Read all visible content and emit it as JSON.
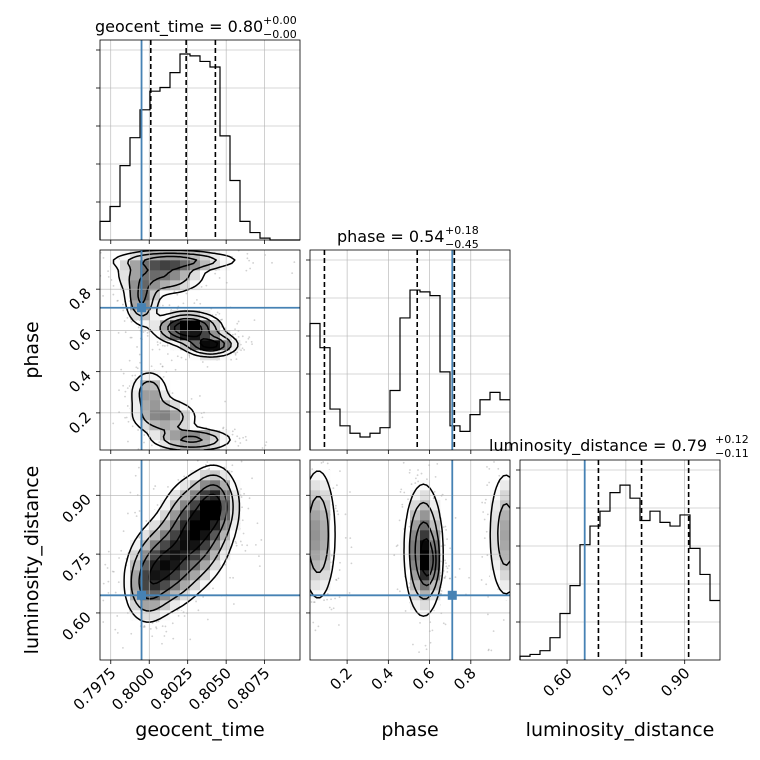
{
  "colors": {
    "truth": "#4682b4",
    "hist": "#000000",
    "grid": "#b0b0b0",
    "quantile": "#000000"
  },
  "chart_data": {
    "type": "corner",
    "parameters": [
      "geocent_time",
      "phase",
      "luminosity_distance"
    ],
    "axis_labels": {
      "geocent_time": "geocent_time",
      "phase": "phase",
      "luminosity_distance": "luminosity_distance"
    },
    "titles": {
      "geocent_time": {
        "base": "geocent_time = 0.80",
        "plus": "+0.00",
        "minus": "−0.00"
      },
      "phase": {
        "base": "phase = 0.54",
        "plus": "+0.18",
        "minus": "−0.45"
      },
      "luminosity_distance": {
        "base": "luminosity_distance = 0.79",
        "plus": "+0.12",
        "minus": "−0.11"
      }
    },
    "ranges": {
      "geocent_time": [
        0.7968,
        0.8098
      ],
      "phase": [
        0.02,
        0.99
      ],
      "luminosity_distance": [
        0.48,
        0.99
      ]
    },
    "ticks": {
      "geocent_time": [
        0.7975,
        0.8,
        0.8025,
        0.805,
        0.8075
      ],
      "phase": [
        0.2,
        0.4,
        0.6,
        0.8
      ],
      "luminosity_distance": [
        0.6,
        0.75,
        0.9
      ]
    },
    "tick_labels": {
      "geocent_time": [
        "0.7975",
        "0.8000",
        "0.8025",
        "0.8050",
        "0.8075"
      ],
      "phase": [
        "0.2",
        "0.4",
        "0.6",
        "0.8"
      ],
      "luminosity_distance": [
        "0.60",
        "0.75",
        "0.90"
      ]
    },
    "truths": {
      "geocent_time": 0.7995,
      "phase": 0.71,
      "luminosity_distance": 0.645
    },
    "quantiles": {
      "geocent_time": [
        0.8001,
        0.8024,
        0.8043
      ],
      "phase": [
        0.09,
        0.54,
        0.72
      ],
      "luminosity_distance": [
        0.68,
        0.79,
        0.91
      ]
    },
    "histograms": {
      "geocent_time": {
        "edges": [
          0.7968,
          0.79745,
          0.7981,
          0.79875,
          0.7994,
          0.80005,
          0.8007,
          0.80135,
          0.802,
          0.80265,
          0.8033,
          0.80395,
          0.8046,
          0.80525,
          0.8059,
          0.80655,
          0.8072,
          0.80785,
          0.8085,
          0.80915,
          0.8098
        ],
        "counts": [
          0.1,
          0.18,
          0.4,
          0.55,
          0.7,
          0.8,
          0.82,
          0.9,
          1.0,
          0.99,
          0.96,
          0.93,
          0.56,
          0.32,
          0.1,
          0.04,
          0.01,
          0.0,
          0.0,
          0.0
        ]
      },
      "phase": {
        "edges": [
          0.02,
          0.0685,
          0.117,
          0.1655,
          0.214,
          0.2625,
          0.311,
          0.3595,
          0.408,
          0.4565,
          0.505,
          0.5535,
          0.602,
          0.6505,
          0.699,
          0.7475,
          0.796,
          0.8445,
          0.893,
          0.9415,
          0.99
        ],
        "counts": [
          0.68,
          0.55,
          0.22,
          0.13,
          0.09,
          0.07,
          0.09,
          0.12,
          0.32,
          0.71,
          0.86,
          0.85,
          0.83,
          0.42,
          0.13,
          0.1,
          0.19,
          0.27,
          0.31,
          0.27
        ]
      },
      "luminosity_distance": {
        "edges": [
          0.48,
          0.5055,
          0.531,
          0.5565,
          0.582,
          0.6075,
          0.633,
          0.6585,
          0.684,
          0.7095,
          0.735,
          0.7605,
          0.786,
          0.8115,
          0.837,
          0.8625,
          0.888,
          0.9135,
          0.939,
          0.9645,
          0.99
        ],
        "counts": [
          0.02,
          0.03,
          0.05,
          0.12,
          0.25,
          0.4,
          0.62,
          0.72,
          0.8,
          0.9,
          0.94,
          0.87,
          0.75,
          0.8,
          0.74,
          0.72,
          0.78,
          0.6,
          0.46,
          0.32
        ]
      }
    },
    "pairs": [
      {
        "x": "geocent_time",
        "y": "phase",
        "density": [
          {
            "x": 0.8008,
            "y": 0.87,
            "sx": 0.0016,
            "sy": 0.055,
            "w": 0.5
          },
          {
            "x": 0.8018,
            "y": 0.94,
            "sx": 0.0022,
            "sy": 0.025,
            "w": 0.5
          },
          {
            "x": 0.7995,
            "y": 0.75,
            "sx": 0.0006,
            "sy": 0.07,
            "w": 0.5
          },
          {
            "x": 0.8025,
            "y": 0.61,
            "sx": 0.0011,
            "sy": 0.04,
            "w": 1.0
          },
          {
            "x": 0.804,
            "y": 0.53,
            "sx": 0.0009,
            "sy": 0.03,
            "w": 0.8
          },
          {
            "x": 0.8,
            "y": 0.3,
            "sx": 0.0007,
            "sy": 0.06,
            "w": 0.4
          },
          {
            "x": 0.801,
            "y": 0.18,
            "sx": 0.0012,
            "sy": 0.05,
            "w": 0.45
          },
          {
            "x": 0.8028,
            "y": 0.07,
            "sx": 0.0014,
            "sy": 0.03,
            "w": 0.55
          }
        ]
      },
      {
        "x": "geocent_time",
        "y": "luminosity_distance",
        "density": [
          {
            "x": 0.801,
            "y": 0.72,
            "sx": 0.0012,
            "sy": 0.06,
            "w": 0.9
          },
          {
            "x": 0.803,
            "y": 0.81,
            "sx": 0.0012,
            "sy": 0.07,
            "w": 1.0
          },
          {
            "x": 0.8043,
            "y": 0.88,
            "sx": 0.0008,
            "sy": 0.05,
            "w": 0.8
          },
          {
            "x": 0.7998,
            "y": 0.66,
            "sx": 0.0008,
            "sy": 0.05,
            "w": 0.5
          }
        ]
      },
      {
        "x": "phase",
        "y": "luminosity_distance",
        "density": [
          {
            "x": 0.57,
            "y": 0.76,
            "sx": 0.05,
            "sy": 0.09,
            "w": 1.0
          },
          {
            "x": 0.6,
            "y": 0.73,
            "sx": 0.025,
            "sy": 0.04,
            "w": 0.6
          },
          {
            "x": 0.06,
            "y": 0.8,
            "sx": 0.05,
            "sy": 0.1,
            "w": 0.65
          },
          {
            "x": 0.97,
            "y": 0.8,
            "sx": 0.05,
            "sy": 0.1,
            "w": 0.55
          }
        ]
      }
    ],
    "grid": true
  }
}
